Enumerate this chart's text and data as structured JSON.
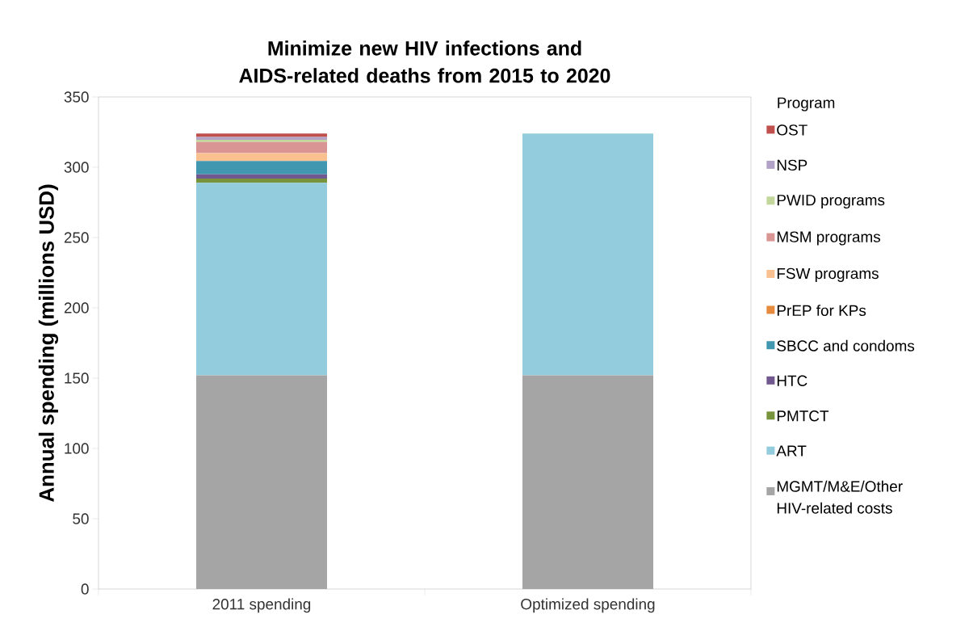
{
  "chart_data": {
    "type": "bar",
    "title": "Minimize new HIV infections and AIDS-related deaths from 2015 to 2020",
    "ylabel": "Annual spending (millions USD)",
    "legend_title": "Program",
    "categories": [
      "2011 spending",
      "Optimized spending"
    ],
    "stacked": true,
    "legend": "right",
    "grid": false,
    "ylim": [
      0,
      350
    ],
    "yticks": [
      0,
      50,
      100,
      150,
      200,
      250,
      300,
      350
    ],
    "series": [
      {
        "name": "MGMT/M&E/Other HIV-related costs",
        "color": "#a5a5a5",
        "values": [
          152,
          152
        ]
      },
      {
        "name": "ART",
        "color": "#93cddd",
        "values": [
          137,
          172
        ]
      },
      {
        "name": "PMTCT",
        "color": "#77933c",
        "values": [
          3,
          0
        ]
      },
      {
        "name": "HTC",
        "color": "#71588f",
        "values": [
          3,
          0
        ]
      },
      {
        "name": "SBCC and condoms",
        "color": "#4197b0",
        "values": [
          9.5,
          0
        ]
      },
      {
        "name": "PrEP for KPs",
        "color": "#e68a3e",
        "values": [
          0,
          0
        ]
      },
      {
        "name": "FSW programs",
        "color": "#fac090",
        "values": [
          5.5,
          0
        ]
      },
      {
        "name": "MSM programs",
        "color": "#d99594",
        "values": [
          8,
          0
        ]
      },
      {
        "name": "PWID programs",
        "color": "#c3d69b",
        "values": [
          1.5,
          0
        ]
      },
      {
        "name": "NSP",
        "color": "#b3a2c7",
        "values": [
          2,
          0
        ]
      },
      {
        "name": "OST",
        "color": "#c0504d",
        "values": [
          2.5,
          0
        ]
      }
    ]
  }
}
